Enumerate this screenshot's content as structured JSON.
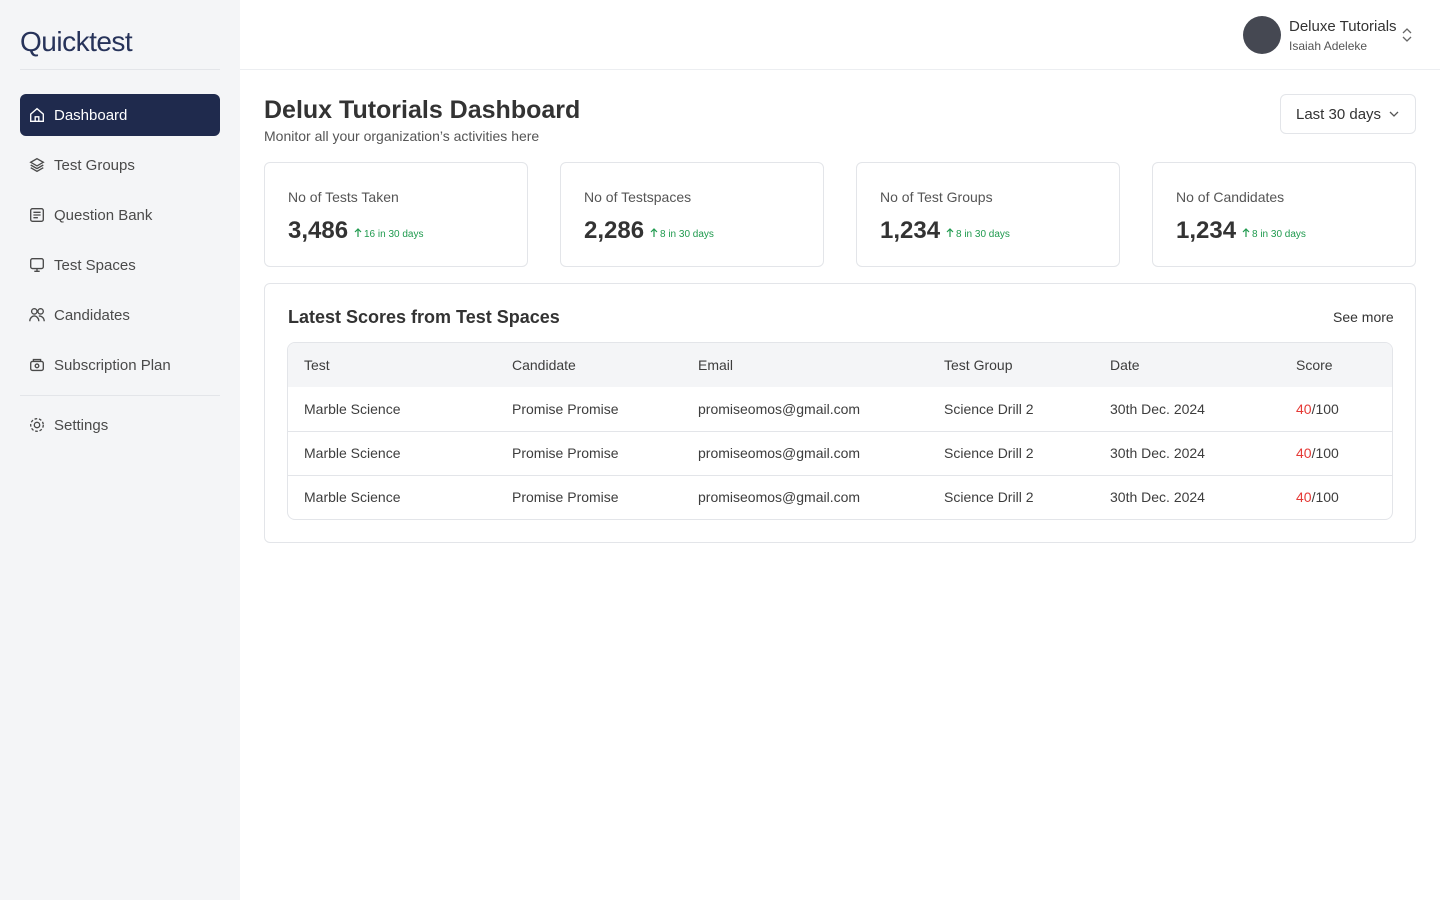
{
  "sidebar": {
    "logo": "Quicktest",
    "nav": [
      "Dashboard",
      "Test Groups",
      "Question Bank",
      "Test Spaces",
      "Candidates",
      "Subscription Plan"
    ],
    "settings": "Settings"
  },
  "header": {
    "org": "Deluxe Tutorials",
    "user": "Isaiah Adeleke"
  },
  "page": {
    "title": "Delux Tutorials Dashboard",
    "subtitle": "Monitor all your organization’s activities here",
    "range": "Last 30 days"
  },
  "stats": [
    {
      "label": "No of Tests Taken",
      "value": "3,486",
      "change": "16 in 30 days"
    },
    {
      "label": "No of Testspaces",
      "value": "2,286",
      "change": "8 in 30 days"
    },
    {
      "label": "No of Test Groups",
      "value": "1,234",
      "change": "8 in 30 days"
    },
    {
      "label": "No of Candidates",
      "value": "1,234",
      "change": "8 in 30 days"
    }
  ],
  "table": {
    "title": "Latest Scores from Test Spaces",
    "link": "See more",
    "columns": [
      "Test",
      "Candidate",
      "Email",
      "Test Group",
      "Date",
      "Score"
    ],
    "rows": [
      {
        "test": "Marble Science",
        "candidate": "Promise Promise",
        "email": "promiseomos@gmail.com",
        "group": "Science Drill 2",
        "date": "30th Dec. 2024",
        "score": "40",
        "total": "/100"
      },
      {
        "test": "Marble Science",
        "candidate": "Promise Promise",
        "email": "promiseomos@gmail.com",
        "group": "Science Drill 2",
        "date": "30th Dec. 2024",
        "score": "40",
        "total": "/100"
      },
      {
        "test": "Marble Science",
        "candidate": "Promise Promise",
        "email": "promiseomos@gmail.com",
        "group": "Science Drill 2",
        "date": "30th Dec. 2024",
        "score": "40",
        "total": "/100"
      }
    ]
  }
}
